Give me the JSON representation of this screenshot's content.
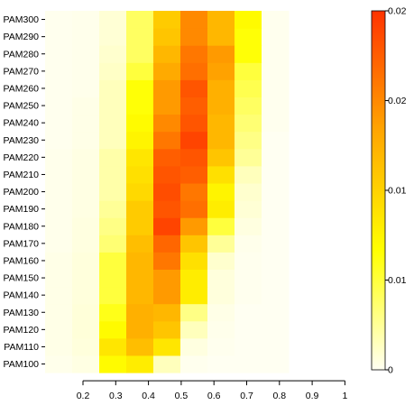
{
  "chart_data": {
    "type": "heatmap",
    "title": "",
    "xlabel": "",
    "ylabel": "",
    "x": [
      "0.2",
      "0.3",
      "0.4",
      "0.5",
      "0.6",
      "0.7",
      "0.8",
      "0.9",
      "1"
    ],
    "y": [
      "PAM100",
      "PAM110",
      "PAM120",
      "PAM130",
      "PAM140",
      "PAM150",
      "PAM160",
      "PAM170",
      "PAM180",
      "PAM190",
      "PAM200",
      "PAM210",
      "PAM220",
      "PAM230",
      "PAM240",
      "PAM250",
      "PAM260",
      "PAM270",
      "PAM280",
      "PAM290",
      "PAM300"
    ],
    "values": [
      [
        0.0002,
        0.0004,
        0.007,
        0.008,
        0.0015,
        0.0001,
        0.0,
        0.0,
        0.0
      ],
      [
        0.0003,
        0.0006,
        0.0085,
        0.0115,
        0.0085,
        0.0005,
        0.0001,
        0.0,
        0.0
      ],
      [
        0.0003,
        0.0007,
        0.007,
        0.0125,
        0.011,
        0.0015,
        0.0002,
        0.0,
        0.0
      ],
      [
        0.0003,
        0.0007,
        0.006,
        0.0125,
        0.012,
        0.003,
        0.0003,
        0.0,
        0.0
      ],
      [
        0.0003,
        0.0006,
        0.005,
        0.012,
        0.014,
        0.008,
        0.0006,
        0.0001,
        0.0
      ],
      [
        0.0003,
        0.0006,
        0.005,
        0.012,
        0.014,
        0.008,
        0.0006,
        0.0001,
        0.0
      ],
      [
        0.0003,
        0.0006,
        0.005,
        0.012,
        0.016,
        0.009,
        0.001,
        0.0001,
        0.0
      ],
      [
        0.0002,
        0.0005,
        0.0035,
        0.0115,
        0.017,
        0.011,
        0.0025,
        0.0002,
        0.0
      ],
      [
        0.0002,
        0.0005,
        0.003,
        0.0105,
        0.019,
        0.014,
        0.005,
        0.0005,
        0.0
      ],
      [
        0.0002,
        0.0004,
        0.0025,
        0.0105,
        0.018,
        0.0165,
        0.008,
        0.0008,
        0.0
      ],
      [
        0.0002,
        0.0004,
        0.002,
        0.0095,
        0.0185,
        0.016,
        0.0075,
        0.001,
        0.0
      ],
      [
        0.0002,
        0.0004,
        0.002,
        0.009,
        0.018,
        0.0175,
        0.009,
        0.0015,
        0.0
      ],
      [
        0.0002,
        0.0004,
        0.002,
        0.0085,
        0.0175,
        0.018,
        0.011,
        0.0025,
        0.0
      ],
      [
        0.0001,
        0.0003,
        0.0015,
        0.0075,
        0.016,
        0.019,
        0.012,
        0.003,
        0.0
      ],
      [
        0.0001,
        0.0003,
        0.0015,
        0.007,
        0.015,
        0.018,
        0.012,
        0.0035,
        0.0001
      ],
      [
        0.0001,
        0.0003,
        0.0015,
        0.0065,
        0.014,
        0.0175,
        0.0125,
        0.004,
        0.0001
      ],
      [
        0.0001,
        0.0002,
        0.0015,
        0.0065,
        0.014,
        0.018,
        0.0125,
        0.0045,
        0.0001
      ],
      [
        0.0001,
        0.0002,
        0.0012,
        0.005,
        0.013,
        0.0165,
        0.0135,
        0.005,
        0.0001
      ],
      [
        0.0001,
        0.0002,
        0.001,
        0.004,
        0.012,
        0.016,
        0.014,
        0.0065,
        0.0001
      ],
      [
        0.0001,
        0.0002,
        0.0008,
        0.004,
        0.011,
        0.015,
        0.012,
        0.0065,
        0.0001
      ],
      [
        0.0001,
        0.0002,
        0.0008,
        0.004,
        0.0105,
        0.015,
        0.012,
        0.007,
        0.0001
      ]
    ],
    "colorbar": {
      "range": [
        0,
        0.02
      ],
      "tick_labels": [
        "0",
        "0.01",
        "0.01",
        "0.02",
        "0.02"
      ],
      "colors": [
        "#FFFFF2",
        "#FFFF00",
        "#FFA500",
        "#FF3300"
      ]
    },
    "grid": false,
    "legend": "right"
  }
}
